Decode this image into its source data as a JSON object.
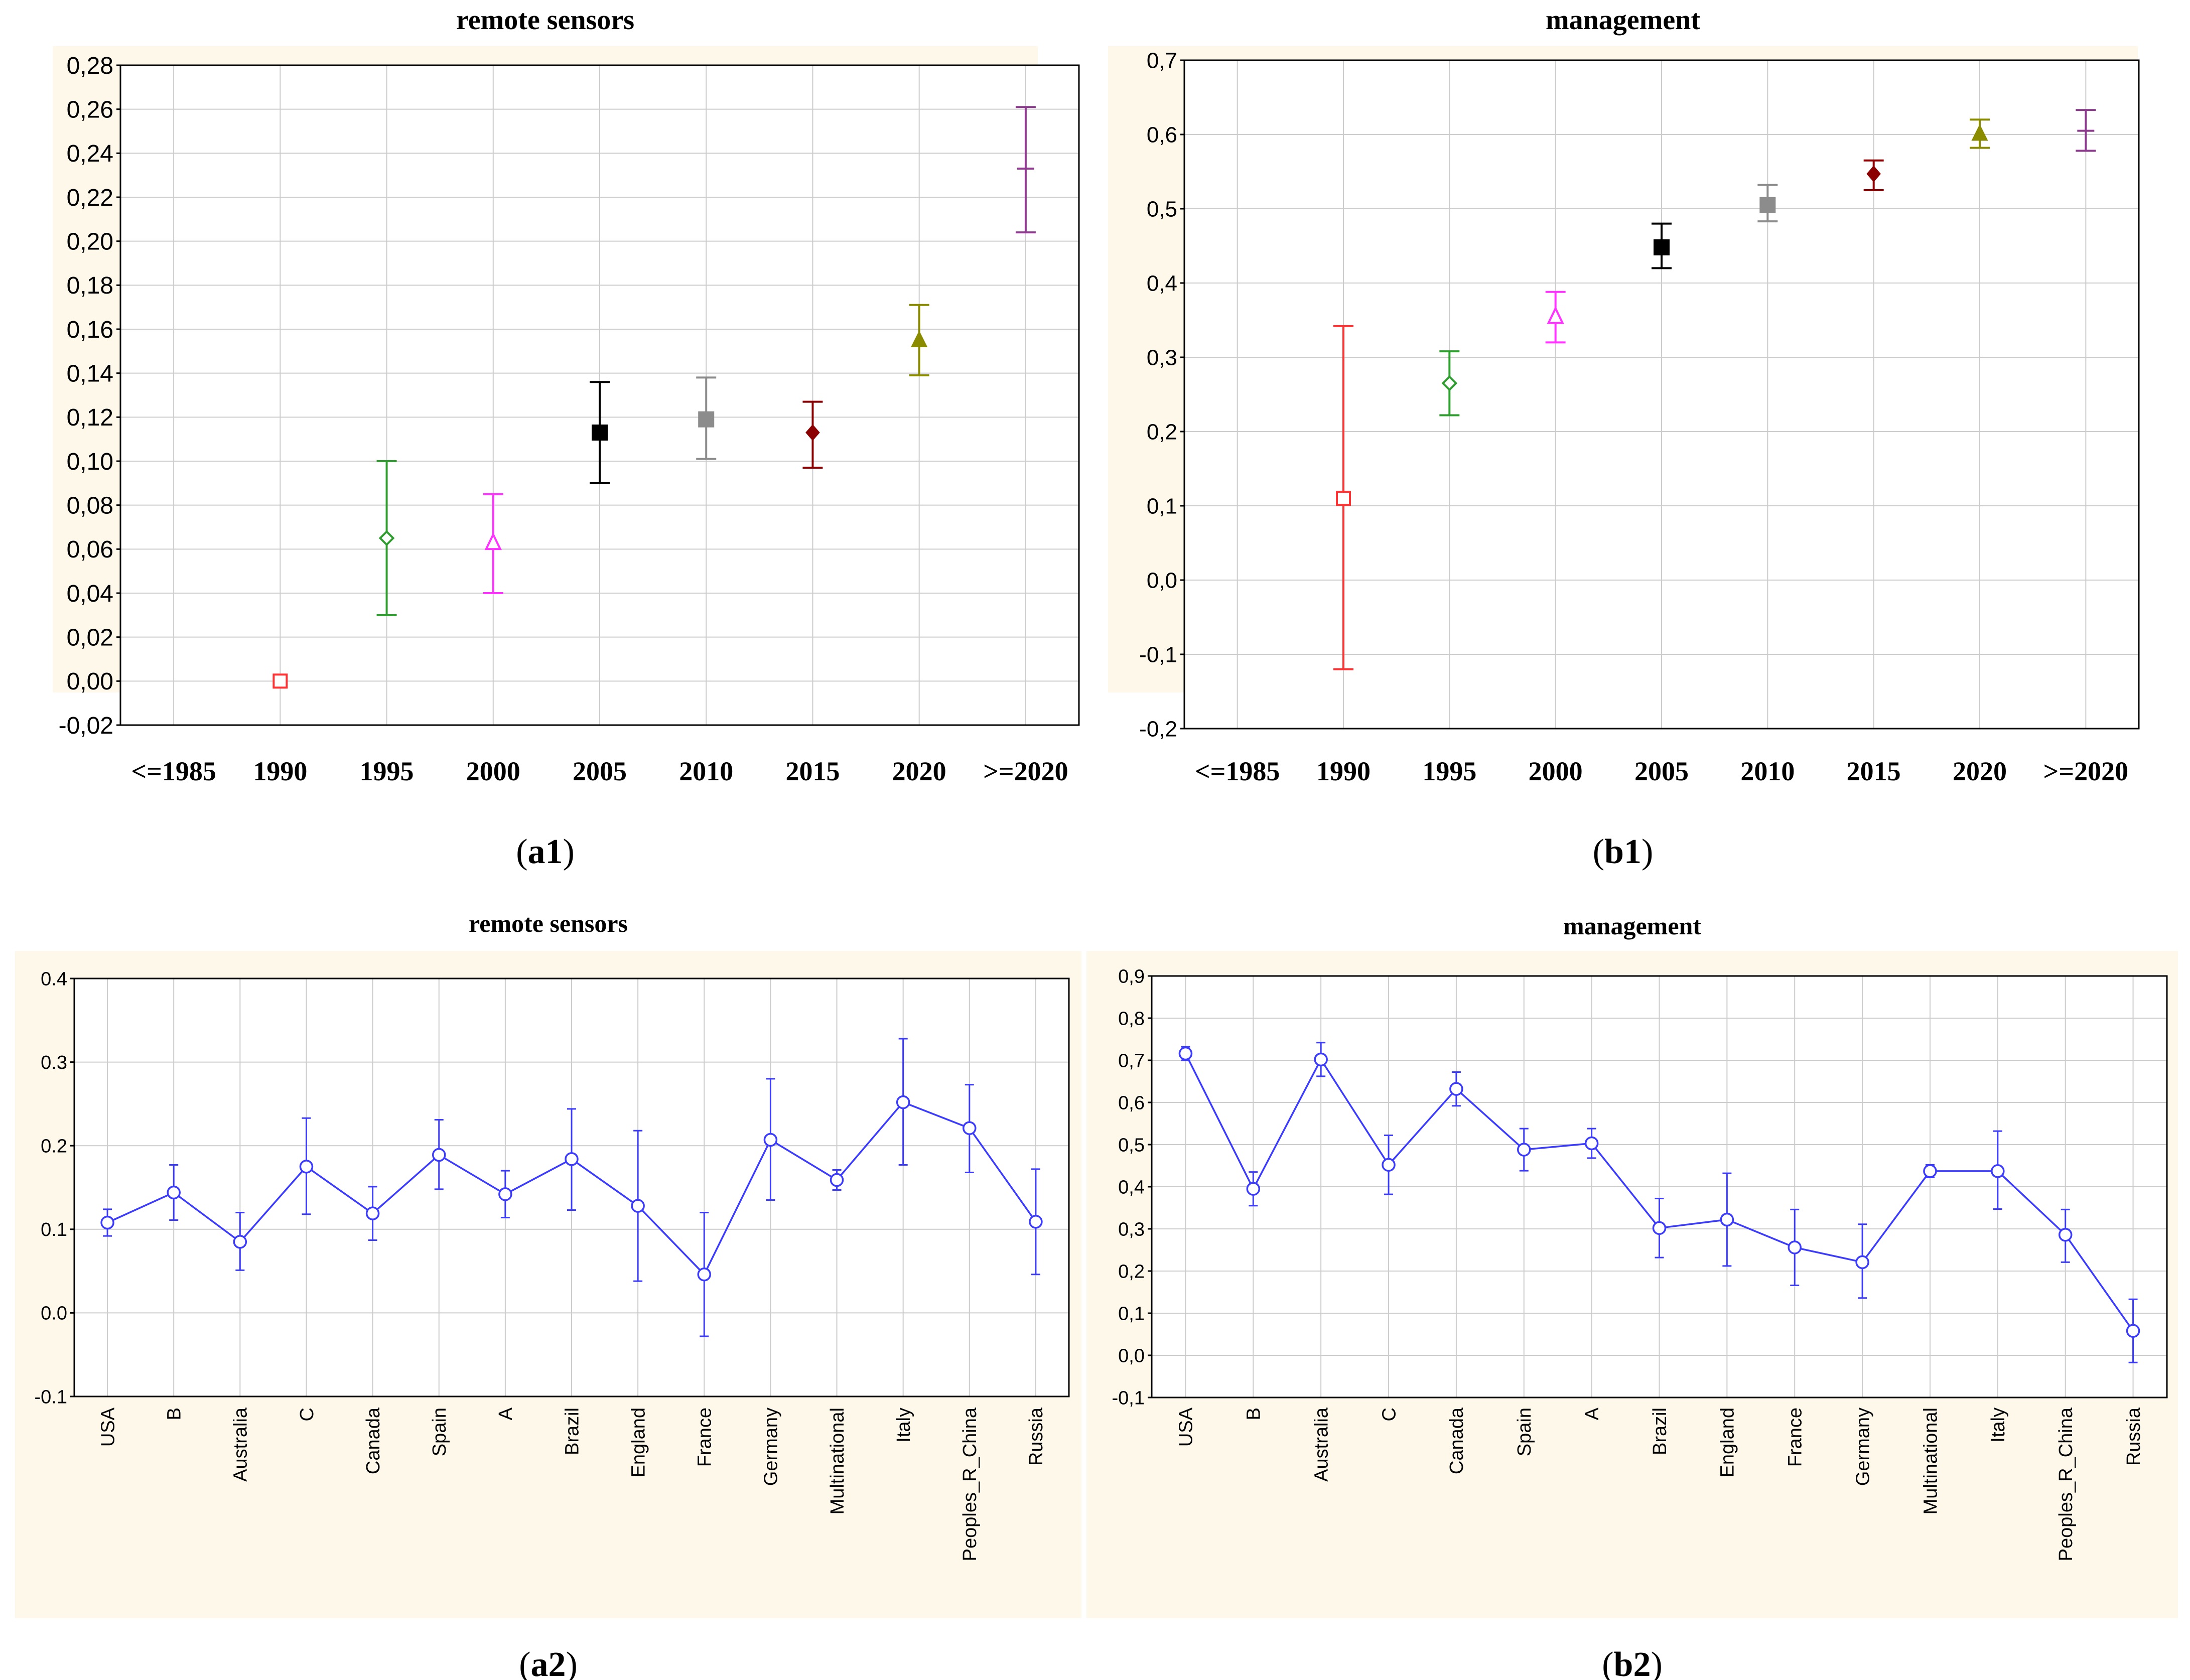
{
  "colors": {
    "panel_bg": "#fdf8ea",
    "plot_bg": "#ffffff",
    "grid": "#cccccc",
    "axis": "#000000",
    "series_line": "#3b3bff"
  },
  "chart_data": [
    {
      "id": "a1",
      "type": "scatter",
      "title": "remote sensors",
      "caption_letter": "a",
      "caption_number": "1",
      "xlabel": "",
      "ylabel": "",
      "categories": [
        "<=1985",
        "1990",
        "1995",
        "2000",
        "2005",
        "2010",
        "2015",
        "2020",
        ">=2020"
      ],
      "ylim": [
        -0.02,
        0.28
      ],
      "yticks": [
        "0,28",
        "0,26",
        "0,24",
        "0,22",
        "0,20",
        "0,18",
        "0,16",
        "0,14",
        "0,12",
        "0,10",
        "0,08",
        "0,06",
        "0,04",
        "0,02",
        "0,00",
        "-0,02"
      ],
      "grid": true,
      "points": [
        {
          "category": "1990",
          "value": 0.0,
          "low": 0.0,
          "high": 0.0,
          "marker": "square-open",
          "color": "#ff3333"
        },
        {
          "category": "1995",
          "value": 0.065,
          "low": 0.03,
          "high": 0.1,
          "marker": "diamond-open",
          "color": "#2e9e2e"
        },
        {
          "category": "2000",
          "value": 0.063,
          "low": 0.04,
          "high": 0.085,
          "marker": "triangle-open",
          "color": "#ff33ff"
        },
        {
          "category": "2005",
          "value": 0.113,
          "low": 0.09,
          "high": 0.136,
          "marker": "square-filled",
          "color": "#000000"
        },
        {
          "category": "2010",
          "value": 0.119,
          "low": 0.101,
          "high": 0.138,
          "marker": "square-filled",
          "color": "#8c8c8c"
        },
        {
          "category": "2015",
          "value": 0.113,
          "low": 0.097,
          "high": 0.127,
          "marker": "diamond-filled",
          "color": "#8b0000"
        },
        {
          "category": "2020",
          "value": 0.155,
          "low": 0.139,
          "high": 0.171,
          "marker": "triangle-filled",
          "color": "#8b8b00"
        },
        {
          "category": ">=2020",
          "value": 0.233,
          "low": 0.204,
          "high": 0.261,
          "marker": "dash",
          "color": "#8e3a8e"
        }
      ]
    },
    {
      "id": "b1",
      "type": "scatter",
      "title": "management",
      "caption_letter": "b",
      "caption_number": "1",
      "xlabel": "",
      "ylabel": "",
      "categories": [
        "<=1985",
        "1990",
        "1995",
        "2000",
        "2005",
        "2010",
        "2015",
        "2020",
        ">=2020"
      ],
      "ylim": [
        -0.2,
        0.7
      ],
      "yticks": [
        "0,7",
        "0,6",
        "0,5",
        "0,4",
        "0,3",
        "0,2",
        "0,1",
        "0,0",
        "-0,1",
        "-0,2"
      ],
      "grid": true,
      "points": [
        {
          "category": "1990",
          "value": 0.11,
          "low": -0.12,
          "high": 0.342,
          "marker": "square-open",
          "color": "#ff3333"
        },
        {
          "category": "1995",
          "value": 0.265,
          "low": 0.222,
          "high": 0.308,
          "marker": "diamond-open",
          "color": "#2e9e2e"
        },
        {
          "category": "2000",
          "value": 0.355,
          "low": 0.32,
          "high": 0.388,
          "marker": "triangle-open",
          "color": "#ff33ff"
        },
        {
          "category": "2005",
          "value": 0.448,
          "low": 0.42,
          "high": 0.48,
          "marker": "square-filled",
          "color": "#000000"
        },
        {
          "category": "2010",
          "value": 0.505,
          "low": 0.483,
          "high": 0.532,
          "marker": "square-filled",
          "color": "#8c8c8c"
        },
        {
          "category": "2015",
          "value": 0.547,
          "low": 0.525,
          "high": 0.565,
          "marker": "diamond-filled",
          "color": "#8b0000"
        },
        {
          "category": "2020",
          "value": 0.601,
          "low": 0.582,
          "high": 0.62,
          "marker": "triangle-filled",
          "color": "#8b8b00"
        },
        {
          "category": ">=2020",
          "value": 0.605,
          "low": 0.578,
          "high": 0.633,
          "marker": "dash",
          "color": "#8e3a8e"
        }
      ]
    },
    {
      "id": "a2",
      "type": "line",
      "title": "remote sensors",
      "caption_letter": "a",
      "caption_number": "2",
      "xlabel": "",
      "ylabel": "",
      "categories": [
        "USA",
        "B",
        "Australia",
        "C",
        "Canada",
        "Spain",
        "A",
        "Brazil",
        "England",
        "France",
        "Germany",
        "Multinational",
        "Italy",
        "Peoples_R_China",
        "Russia"
      ],
      "ylim": [
        -0.1,
        0.4
      ],
      "yticks": [
        "0.4",
        "0.3",
        "0.2",
        "0.1",
        "0.0",
        "-0.1"
      ],
      "grid": true,
      "values": [
        0.108,
        0.144,
        0.085,
        0.175,
        0.119,
        0.189,
        0.142,
        0.184,
        0.128,
        0.046,
        0.207,
        0.159,
        0.252,
        0.221,
        0.109
      ],
      "lows": [
        0.092,
        0.111,
        0.051,
        0.118,
        0.087,
        0.148,
        0.114,
        0.123,
        0.038,
        -0.028,
        0.135,
        0.147,
        0.177,
        0.168,
        0.046
      ],
      "highs": [
        0.124,
        0.177,
        0.12,
        0.233,
        0.151,
        0.231,
        0.17,
        0.244,
        0.218,
        0.12,
        0.28,
        0.171,
        0.328,
        0.273,
        0.172
      ]
    },
    {
      "id": "b2",
      "type": "line",
      "title": "management",
      "caption_letter": "b",
      "caption_number": "2",
      "xlabel": "",
      "ylabel": "",
      "categories": [
        "USA",
        "B",
        "Australia",
        "C",
        "Canada",
        "Spain",
        "A",
        "Brazil",
        "England",
        "France",
        "Germany",
        "Multinational",
        "Italy",
        "Peoples_R_China",
        "Russia"
      ],
      "ylim": [
        -0.1,
        0.9
      ],
      "yticks": [
        "0,9",
        "0,8",
        "0,7",
        "0,6",
        "0,5",
        "0,4",
        "0,3",
        "0,2",
        "0,1",
        "0,0",
        "-0,1"
      ],
      "grid": true,
      "values": [
        0.716,
        0.395,
        0.702,
        0.452,
        0.632,
        0.488,
        0.503,
        0.302,
        0.322,
        0.256,
        0.221,
        0.437,
        0.437,
        0.286,
        0.058
      ],
      "lows": [
        0.7,
        0.355,
        0.662,
        0.382,
        0.592,
        0.438,
        0.468,
        0.232,
        0.212,
        0.166,
        0.136,
        0.422,
        0.347,
        0.221,
        -0.017
      ],
      "highs": [
        0.732,
        0.435,
        0.742,
        0.522,
        0.672,
        0.538,
        0.538,
        0.372,
        0.432,
        0.346,
        0.311,
        0.452,
        0.532,
        0.346,
        0.133
      ]
    }
  ]
}
